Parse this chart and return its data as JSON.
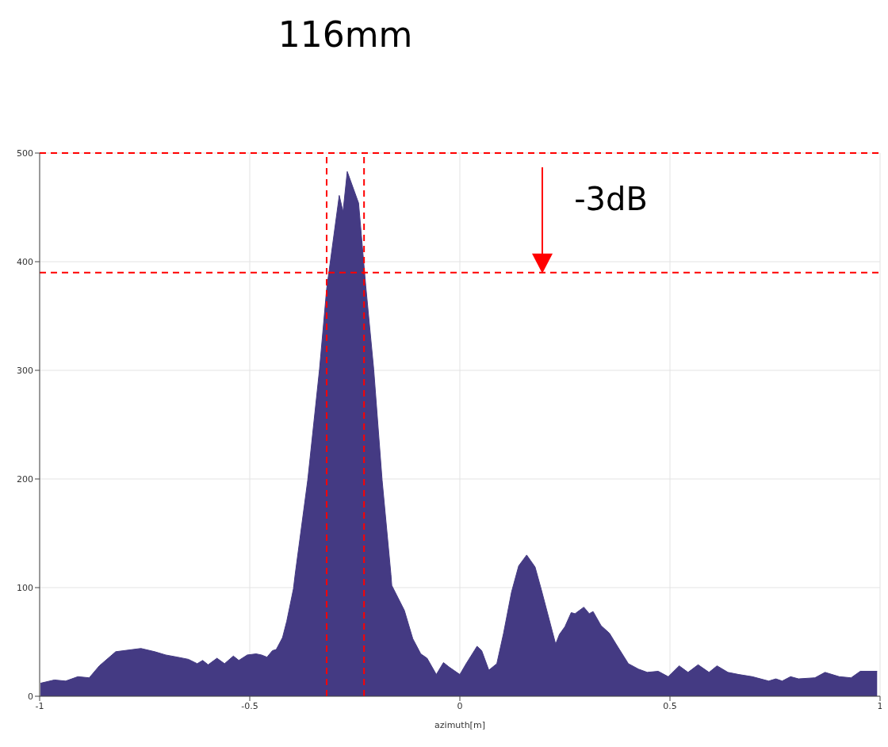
{
  "chart_data": {
    "type": "area",
    "xlabel": "azimuth[m]",
    "annotations": [
      "116mm",
      "-3dB"
    ],
    "xlim": [
      -1,
      1
    ],
    "xticks": [
      -1,
      -0.5,
      0,
      0.5,
      1
    ],
    "ylim": [
      0,
      500
    ],
    "yticks": [
      0,
      100,
      200,
      300,
      400,
      500
    ],
    "grid": true,
    "ref_lines": [
      {
        "axis": "y",
        "value": 500,
        "color": "#ff0000",
        "line_style": "dashed"
      },
      {
        "axis": "y",
        "value": 390,
        "color": "#ff0000",
        "line_style": "dashed"
      },
      {
        "axis": "x",
        "value": -0.317,
        "color": "#ff0000",
        "line_style": "dashed"
      },
      {
        "axis": "x",
        "value": -0.228,
        "color": "#ff0000",
        "line_style": "dashed"
      }
    ],
    "series": [
      {
        "color": "#443a83",
        "x": [
          -0.998,
          -0.965,
          -0.938,
          -0.909,
          -0.882,
          -0.858,
          -0.819,
          -0.759,
          -0.726,
          -0.7,
          -0.672,
          -0.646,
          -0.625,
          -0.612,
          -0.599,
          -0.578,
          -0.56,
          -0.539,
          -0.526,
          -0.506,
          -0.485,
          -0.472,
          -0.459,
          -0.446,
          -0.437,
          -0.422,
          -0.412,
          -0.396,
          -0.392,
          -0.362,
          -0.334,
          -0.317,
          -0.287,
          -0.278,
          -0.268,
          -0.241,
          -0.224,
          -0.205,
          -0.185,
          -0.164,
          -0.162,
          -0.132,
          -0.112,
          -0.093,
          -0.078,
          -0.056,
          -0.039,
          -0.026,
          0,
          0.015,
          0.041,
          0.052,
          0.069,
          0.088,
          0.104,
          0.123,
          0.14,
          0.159,
          0.179,
          0.194,
          0.211,
          0.228,
          0.237,
          0.25,
          0.265,
          0.274,
          0.295,
          0.308,
          0.317,
          0.336,
          0.356,
          0.375,
          0.401,
          0.425,
          0.446,
          0.472,
          0.496,
          0.522,
          0.543,
          0.567,
          0.593,
          0.612,
          0.638,
          0.664,
          0.696,
          0.735,
          0.752,
          0.767,
          0.787,
          0.806,
          0.845,
          0.869,
          0.903,
          0.931,
          0.953,
          0.993
        ],
        "values": [
          12,
          15,
          14,
          18,
          17,
          28,
          41,
          44,
          41,
          38,
          36,
          34,
          30,
          33,
          29,
          35,
          30,
          37,
          33,
          38,
          39,
          38,
          36,
          42,
          43,
          54,
          69,
          99,
          112,
          199,
          301,
          375,
          461,
          446,
          483,
          454,
          378,
          301,
          199,
          112,
          102,
          79,
          53,
          39,
          35,
          20,
          31,
          27,
          20,
          30,
          46,
          42,
          24,
          30,
          58,
          96,
          120,
          130,
          119,
          98,
          73,
          48,
          57,
          64,
          77,
          76,
          82,
          76,
          78,
          65,
          58,
          46,
          30,
          25,
          22,
          23,
          18,
          28,
          22,
          29,
          22,
          28,
          22,
          20,
          18,
          14,
          16,
          14,
          18,
          16,
          17,
          22,
          18,
          17,
          23,
          23
        ]
      }
    ]
  }
}
